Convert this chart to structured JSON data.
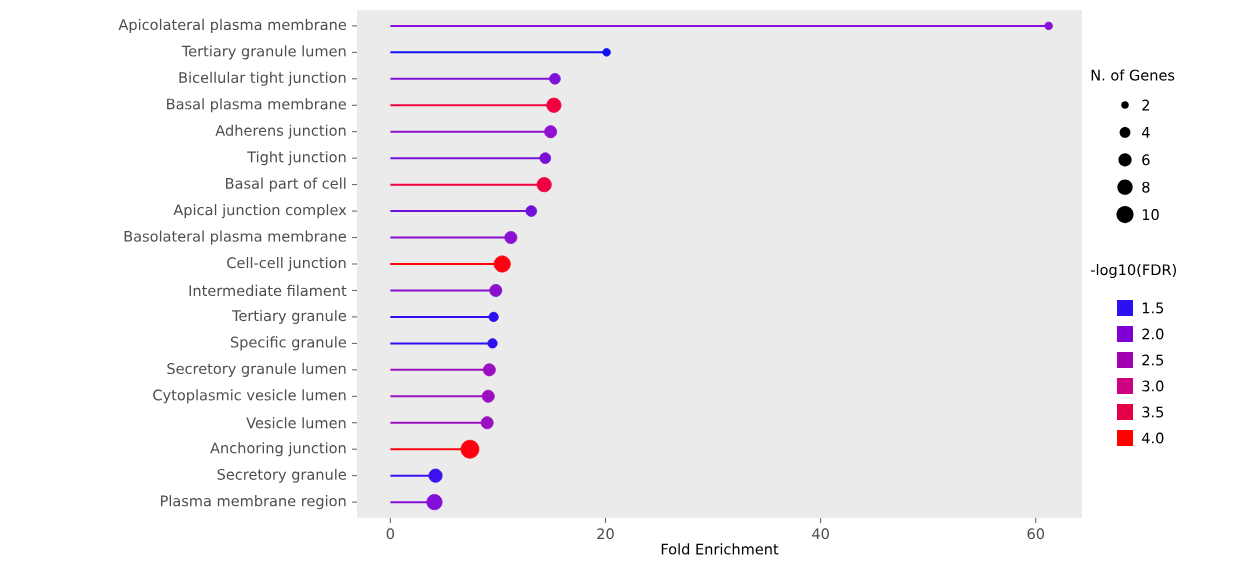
{
  "chart_data": {
    "type": "lollipop",
    "orientation": "horizontal",
    "xlabel": "Fold Enrichment",
    "categories": [
      "Apicolateral plasma membrane",
      "Tertiary granule lumen",
      "Bicellular tight junction",
      "Basal plasma membrane",
      "Adherens junction",
      "Tight junction",
      "Basal part of cell",
      "Apical junction complex",
      "Basolateral plasma membrane",
      "Cell-cell junction",
      "Intermediate filament",
      "Tertiary granule",
      "Specific granule",
      "Secretory granule lumen",
      "Cytoplasmic vesicle lumen",
      "Vesicle lumen",
      "Anchoring junction",
      "Secretory granule",
      "Plasma membrane region"
    ],
    "values": [
      61.2,
      20.1,
      15.3,
      15.2,
      14.9,
      14.4,
      14.3,
      13.1,
      11.2,
      10.4,
      9.8,
      9.6,
      9.5,
      9.2,
      9.1,
      9.0,
      7.4,
      4.2,
      4.1
    ],
    "sizes": [
      2,
      2,
      4,
      7,
      5,
      4,
      7,
      4,
      5,
      9,
      5,
      3,
      3,
      5,
      5,
      5,
      11,
      6,
      8
    ],
    "colors": [
      "#8a10d8",
      "#1010f0",
      "#8010d8",
      "#f00040",
      "#9010d0",
      "#7a10d8",
      "#f00040",
      "#7010d8",
      "#8c10d0",
      "#ff0010",
      "#8a10d0",
      "#2c10f0",
      "#2c10f0",
      "#9a10c0",
      "#9a10c0",
      "#9a10c0",
      "#ff0010",
      "#3c10f0",
      "#8410d8"
    ],
    "xlim": [
      -3.1,
      64.3
    ],
    "xticks": [
      0,
      20,
      40,
      60
    ],
    "legend_title": "N. of Genes",
    "size_legend": [
      2,
      4,
      6,
      8,
      10
    ],
    "clabel": "-log10(FDR)",
    "cticks": [
      1.5,
      {
        "value": 2.0,
        "label": "2.0"
      },
      2.5,
      {
        "value": 3.0,
        "label": "3.0"
      },
      3.5,
      {
        "value": 4.0,
        "label": "4.0"
      }
    ]
  }
}
